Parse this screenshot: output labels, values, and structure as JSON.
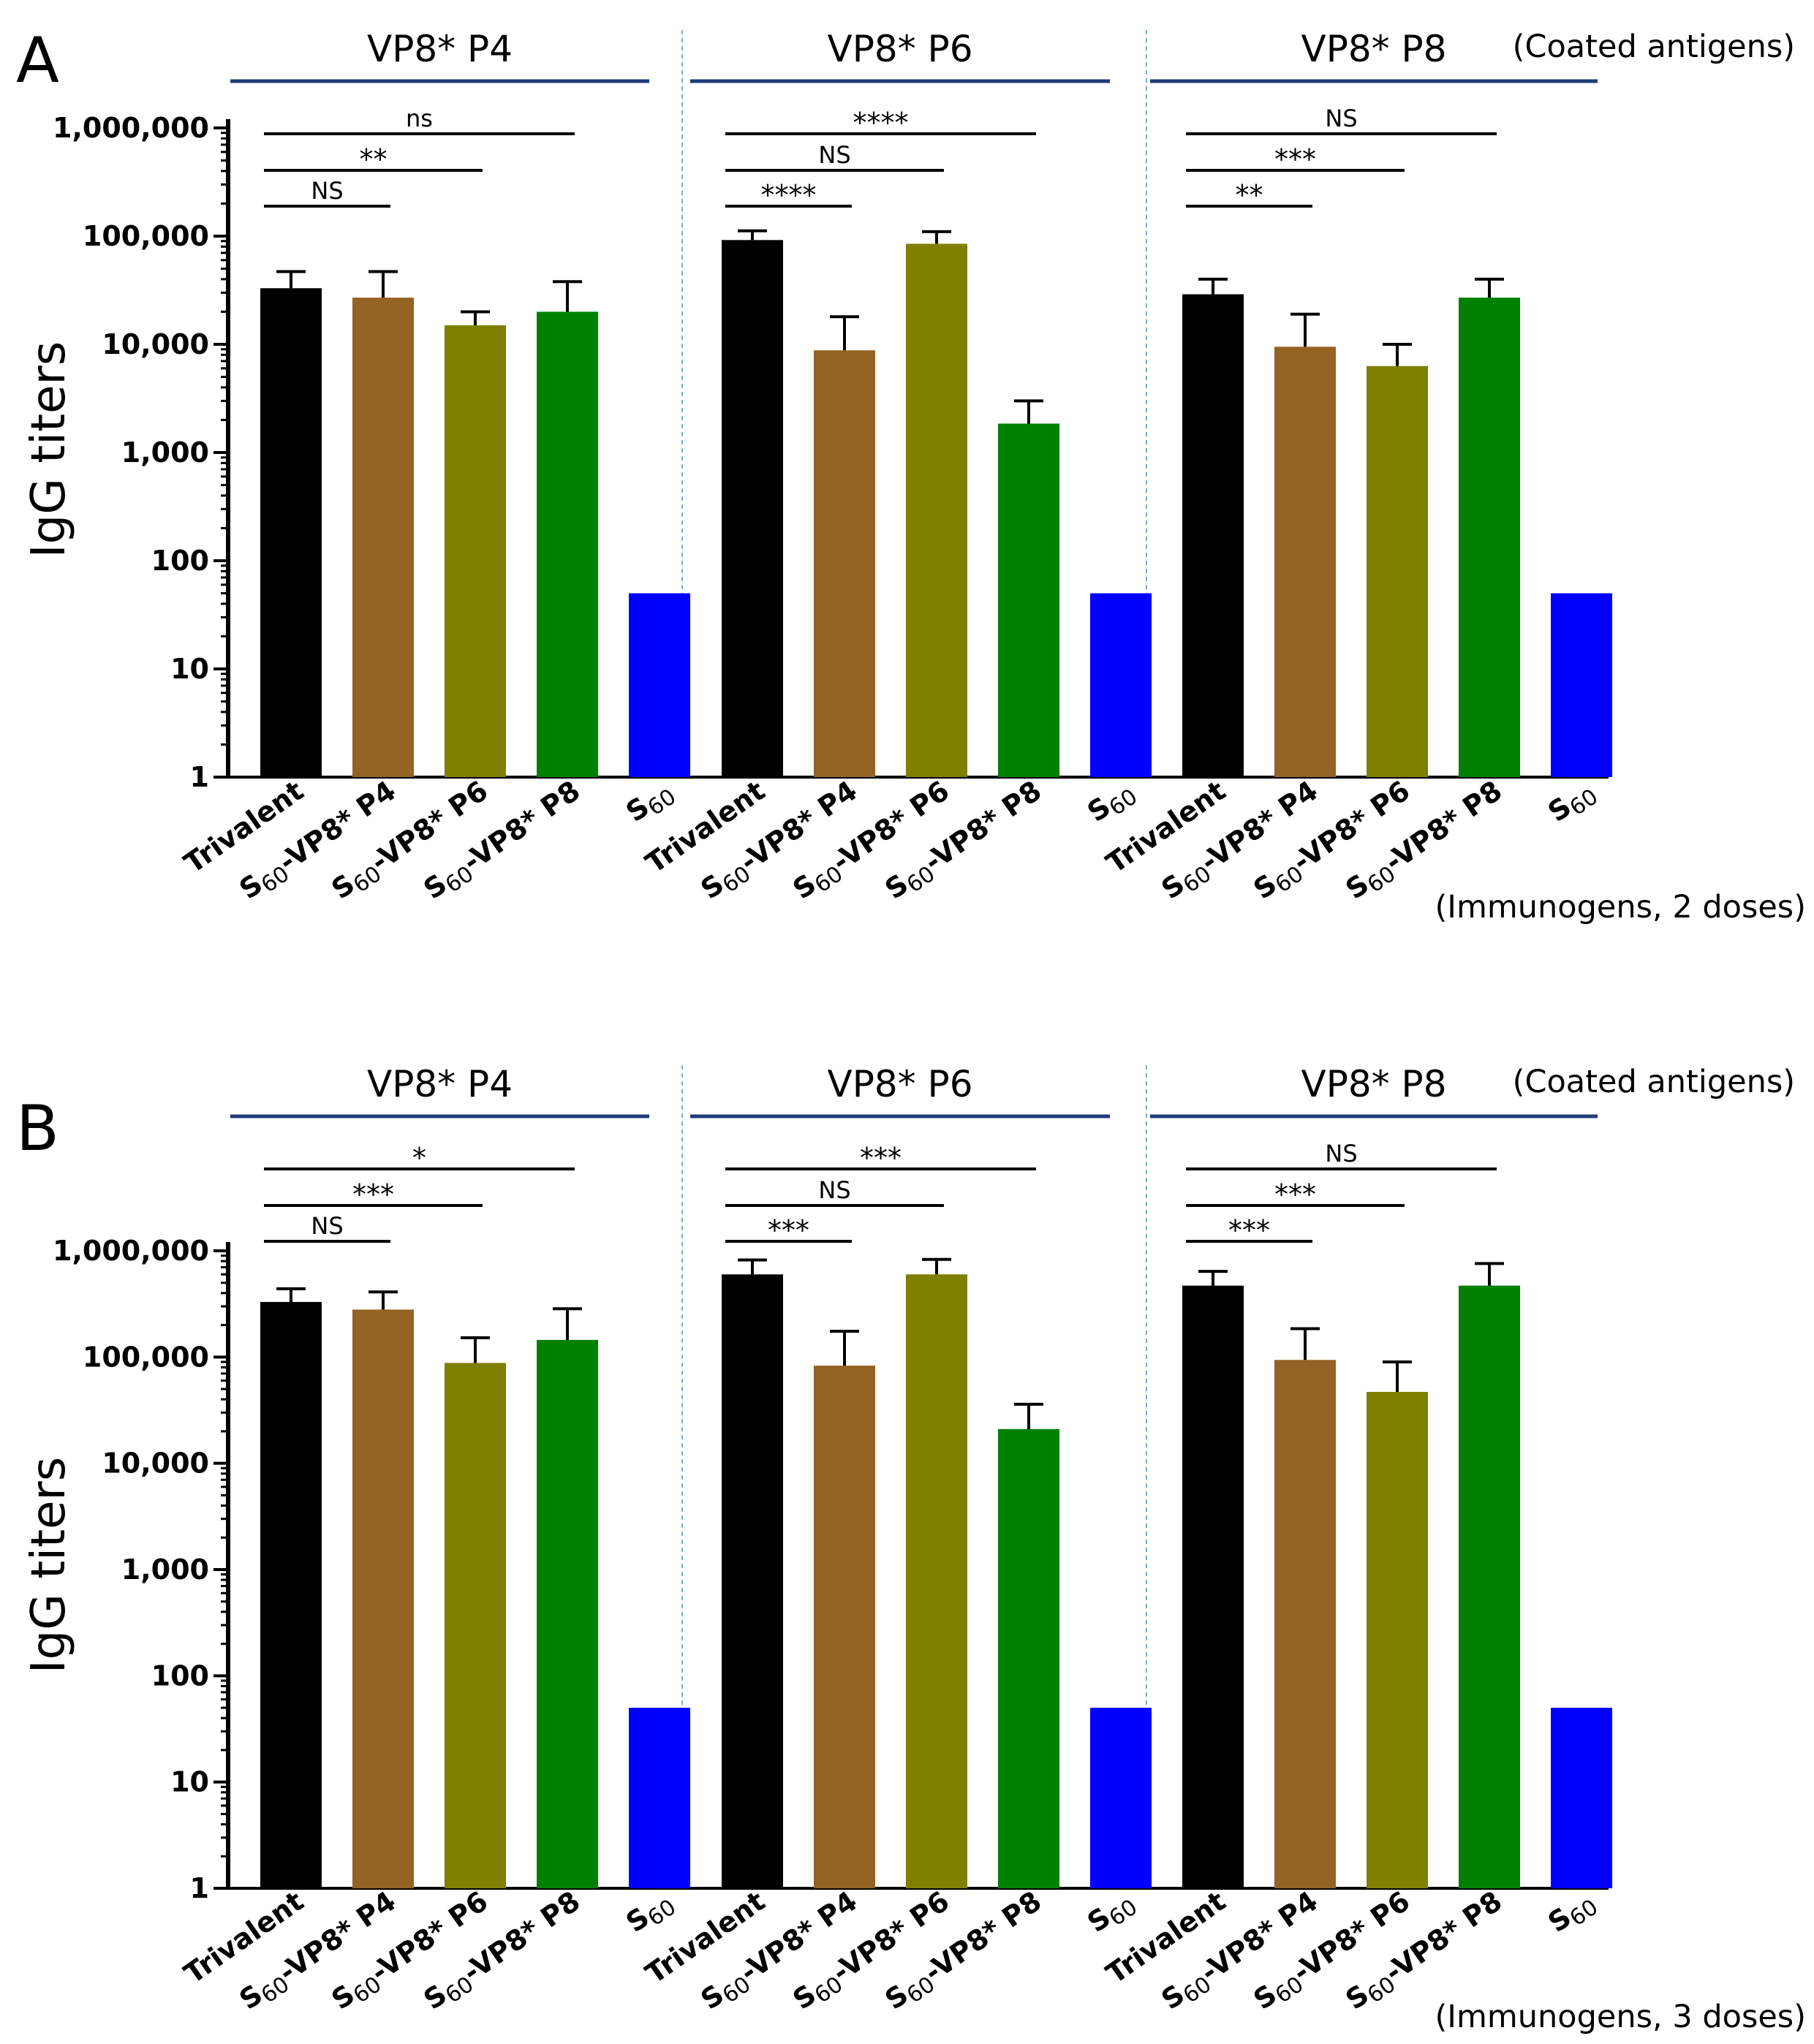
{
  "colors": {
    "Trivalent": "#000000",
    "S60-VP8* P4": "#946223",
    "S60-VP8* P6": "#7f7f00",
    "S60-VP8* P8": "#008000",
    "S60": "#0000ff",
    "group_line": "#1f3b7a",
    "divider": "#7fa9d6"
  },
  "chart_data": [
    {
      "type": "bar",
      "panel": "A",
      "ylabel": "IgG titers",
      "yscale": "log",
      "ylim": [
        1,
        1000000
      ],
      "yticks": [
        1,
        10,
        100,
        1000,
        10000,
        100000,
        1000000
      ],
      "ytick_labels": [
        "1",
        "10",
        "100",
        "1,000",
        "10,000",
        "100,000",
        "1,000,000"
      ],
      "coated_label": "(Coated antigens)",
      "immunogen_label": "(Immunogens, 2 doses)",
      "groups": [
        {
          "title": "VP8* P4",
          "categories": [
            "Trivalent",
            "S60-VP8* P4",
            "S60-VP8* P6",
            "S60-VP8* P8",
            "S60"
          ],
          "values": [
            33000,
            27000,
            15000,
            20000,
            50
          ],
          "errors": [
            47000,
            47000,
            20000,
            38000,
            null
          ],
          "comparisons": [
            {
              "to": 1,
              "label": "NS"
            },
            {
              "to": 2,
              "label": "**"
            },
            {
              "to": 3,
              "label": "ns"
            }
          ]
        },
        {
          "title": "VP8* P6",
          "categories": [
            "Trivalent",
            "S60-VP8* P4",
            "S60-VP8* P6",
            "S60-VP8* P8",
            "S60"
          ],
          "values": [
            92000,
            8800,
            85000,
            1850,
            50
          ],
          "errors": [
            112000,
            18000,
            110000,
            3000,
            null
          ],
          "comparisons": [
            {
              "to": 1,
              "label": "****"
            },
            {
              "to": 2,
              "label": "NS"
            },
            {
              "to": 3,
              "label": "****"
            }
          ]
        },
        {
          "title": "VP8* P8",
          "categories": [
            "Trivalent",
            "S60-VP8* P4",
            "S60-VP8* P6",
            "S60-VP8* P8",
            "S60"
          ],
          "values": [
            29000,
            9500,
            6300,
            27000,
            50
          ],
          "errors": [
            40000,
            19000,
            10000,
            40000,
            null
          ],
          "comparisons": [
            {
              "to": 1,
              "label": "**"
            },
            {
              "to": 2,
              "label": "***"
            },
            {
              "to": 3,
              "label": "NS"
            }
          ]
        }
      ]
    },
    {
      "type": "bar",
      "panel": "B",
      "ylabel": "IgG titers",
      "yscale": "log",
      "ylim": [
        1,
        1000000
      ],
      "yticks": [
        1,
        10,
        100,
        1000,
        10000,
        100000,
        1000000
      ],
      "ytick_labels": [
        "1",
        "10",
        "100",
        "1,000",
        "10,000",
        "100,000",
        "1,000,000"
      ],
      "coated_label": "(Coated antigens)",
      "immunogen_label": "(Immunogens, 3 doses)",
      "groups": [
        {
          "title": "VP8* P4",
          "categories": [
            "Trivalent",
            "S60-VP8* P4",
            "S60-VP8* P6",
            "S60-VP8* P8",
            "S60"
          ],
          "values": [
            330000,
            280000,
            88000,
            145000,
            50
          ],
          "errors": [
            440000,
            410000,
            152000,
            285000,
            null
          ],
          "comparisons": [
            {
              "to": 1,
              "label": "NS"
            },
            {
              "to": 2,
              "label": "***"
            },
            {
              "to": 3,
              "label": "*"
            }
          ]
        },
        {
          "title": "VP8* P6",
          "categories": [
            "Trivalent",
            "S60-VP8* P4",
            "S60-VP8* P6",
            "S60-VP8* P8",
            "S60"
          ],
          "values": [
            600000,
            83000,
            600000,
            21000,
            50
          ],
          "errors": [
            820000,
            175000,
            830000,
            36000,
            null
          ],
          "comparisons": [
            {
              "to": 1,
              "label": "***"
            },
            {
              "to": 2,
              "label": "NS"
            },
            {
              "to": 3,
              "label": "***"
            }
          ]
        },
        {
          "title": "VP8* P8",
          "categories": [
            "Trivalent",
            "S60-VP8* P4",
            "S60-VP8* P6",
            "S60-VP8* P8",
            "S60"
          ],
          "values": [
            470000,
            94000,
            47000,
            470000,
            50
          ],
          "errors": [
            640000,
            185000,
            90000,
            760000,
            null
          ],
          "comparisons": [
            {
              "to": 1,
              "label": "***"
            },
            {
              "to": 2,
              "label": "***"
            },
            {
              "to": 3,
              "label": "NS"
            }
          ]
        }
      ]
    }
  ]
}
